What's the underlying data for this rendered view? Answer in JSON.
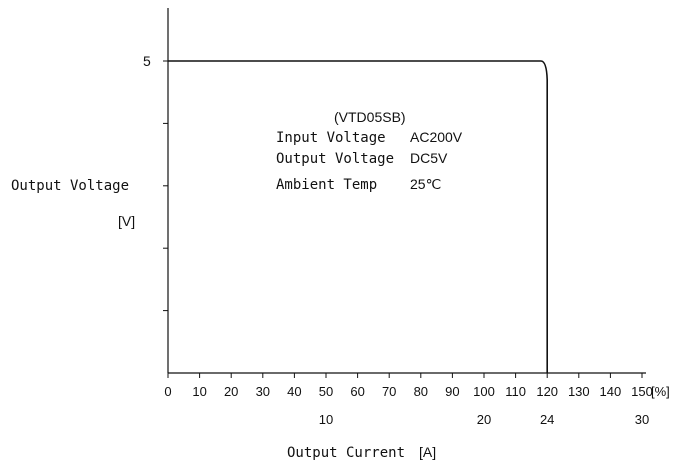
{
  "chart_data": {
    "type": "line",
    "title": "",
    "xlabel": "Output Current",
    "xlabel_unit": "[A]",
    "ylabel": "Output Voltage",
    "ylabel_unit": "[V]",
    "x_percent_ticks": [
      0,
      10,
      20,
      30,
      40,
      50,
      60,
      70,
      80,
      90,
      100,
      110,
      120,
      130,
      140,
      150
    ],
    "x_percent_unit": "[%]",
    "x_ampere_ticks": [
      {
        "percent": 50,
        "label": "10"
      },
      {
        "percent": 100,
        "label": "20"
      },
      {
        "percent": 120,
        "label": "24"
      },
      {
        "percent": 150,
        "label": "30"
      }
    ],
    "y_labeled_ticks": [
      {
        "value": 5,
        "label": "5"
      }
    ],
    "xlim": [
      0,
      150
    ],
    "ylim": [
      0,
      6
    ],
    "grid": false,
    "series": [
      {
        "x": [
          0,
          118,
          120,
          120
        ],
        "y": [
          5,
          5,
          4.7,
          0
        ]
      }
    ],
    "annotation": {
      "model": "(VTD05SB)",
      "rows": [
        {
          "label": "Input Voltage",
          "value": "AC200V"
        },
        {
          "label": "Output Voltage",
          "value": "DC5V"
        },
        {
          "label": "Ambient Temp",
          "value": "25℃"
        }
      ]
    }
  }
}
